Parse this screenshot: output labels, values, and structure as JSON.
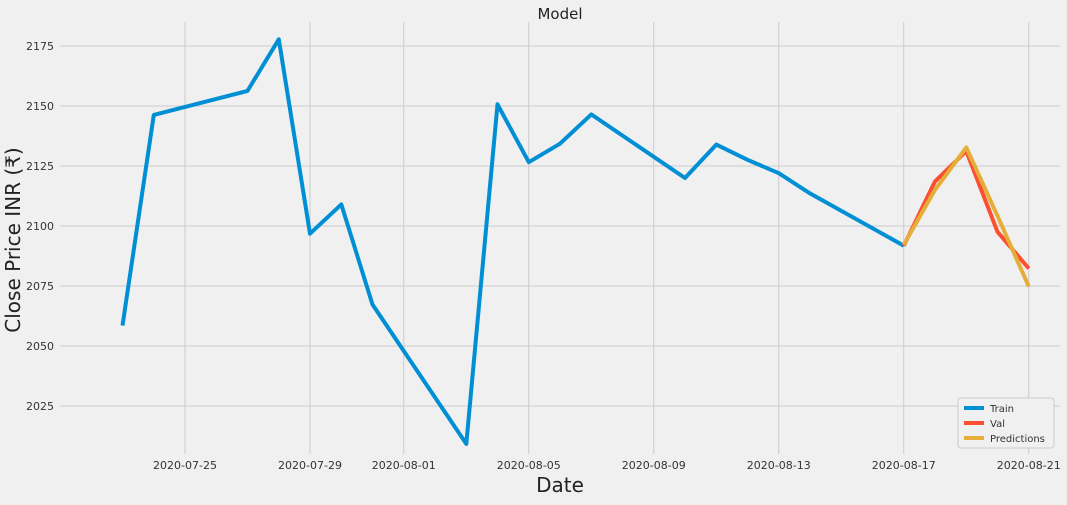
{
  "chart_data": {
    "type": "line",
    "title": "Model",
    "xlabel": "Date",
    "ylabel": "Close Price INR (₹)",
    "x_tick_labels": [
      "2020-07-25",
      "2020-07-29",
      "2020-08-01",
      "2020-08-05",
      "2020-08-09",
      "2020-08-13",
      "2020-08-17",
      "2020-08-21"
    ],
    "x_tick_dates": [
      "2020-07-25",
      "2020-07-29",
      "2020-08-01",
      "2020-08-05",
      "2020-08-09",
      "2020-08-13",
      "2020-08-17",
      "2020-08-21"
    ],
    "y_ticks": [
      2025,
      2050,
      2075,
      2100,
      2125,
      2150,
      2175
    ],
    "xlim": [
      "2020-07-21",
      "2020-08-22"
    ],
    "ylim": [
      2005,
      2185
    ],
    "grid": true,
    "legend_position": "bottom-right",
    "series": [
      {
        "name": "Train",
        "color": "#008fd5",
        "points": [
          [
            "2020-07-23",
            2058.5
          ],
          [
            "2020-07-24",
            2146.3
          ],
          [
            "2020-07-27",
            2156.3
          ],
          [
            "2020-07-28",
            2177.8
          ],
          [
            "2020-07-29",
            2096.8
          ],
          [
            "2020-07-30",
            2109.0
          ],
          [
            "2020-07-31",
            2067.3
          ],
          [
            "2020-08-03",
            2009.2
          ],
          [
            "2020-08-04",
            2150.7
          ],
          [
            "2020-08-05",
            2126.6
          ],
          [
            "2020-08-06",
            2134.3
          ],
          [
            "2020-08-07",
            2146.5
          ],
          [
            "2020-08-10",
            2120.0
          ],
          [
            "2020-08-11",
            2133.9
          ],
          [
            "2020-08-12",
            2127.6
          ],
          [
            "2020-08-13",
            2122.0
          ],
          [
            "2020-08-14",
            2113.6
          ],
          [
            "2020-08-17",
            2091.8
          ]
        ]
      },
      {
        "name": "Val",
        "color": "#fc4f30",
        "points": [
          [
            "2020-08-17",
            2091.8
          ],
          [
            "2020-08-18",
            2118.6
          ],
          [
            "2020-08-19",
            2131.2
          ],
          [
            "2020-08-20",
            2097.6
          ],
          [
            "2020-08-21",
            2082.3
          ]
        ]
      },
      {
        "name": "Predictions",
        "color": "#e5ae38",
        "points": [
          [
            "2020-08-17",
            2092.2
          ],
          [
            "2020-08-18",
            2115.1
          ],
          [
            "2020-08-19",
            2132.7
          ],
          [
            "2020-08-20",
            2104.2
          ],
          [
            "2020-08-21",
            2074.8
          ]
        ]
      }
    ]
  }
}
